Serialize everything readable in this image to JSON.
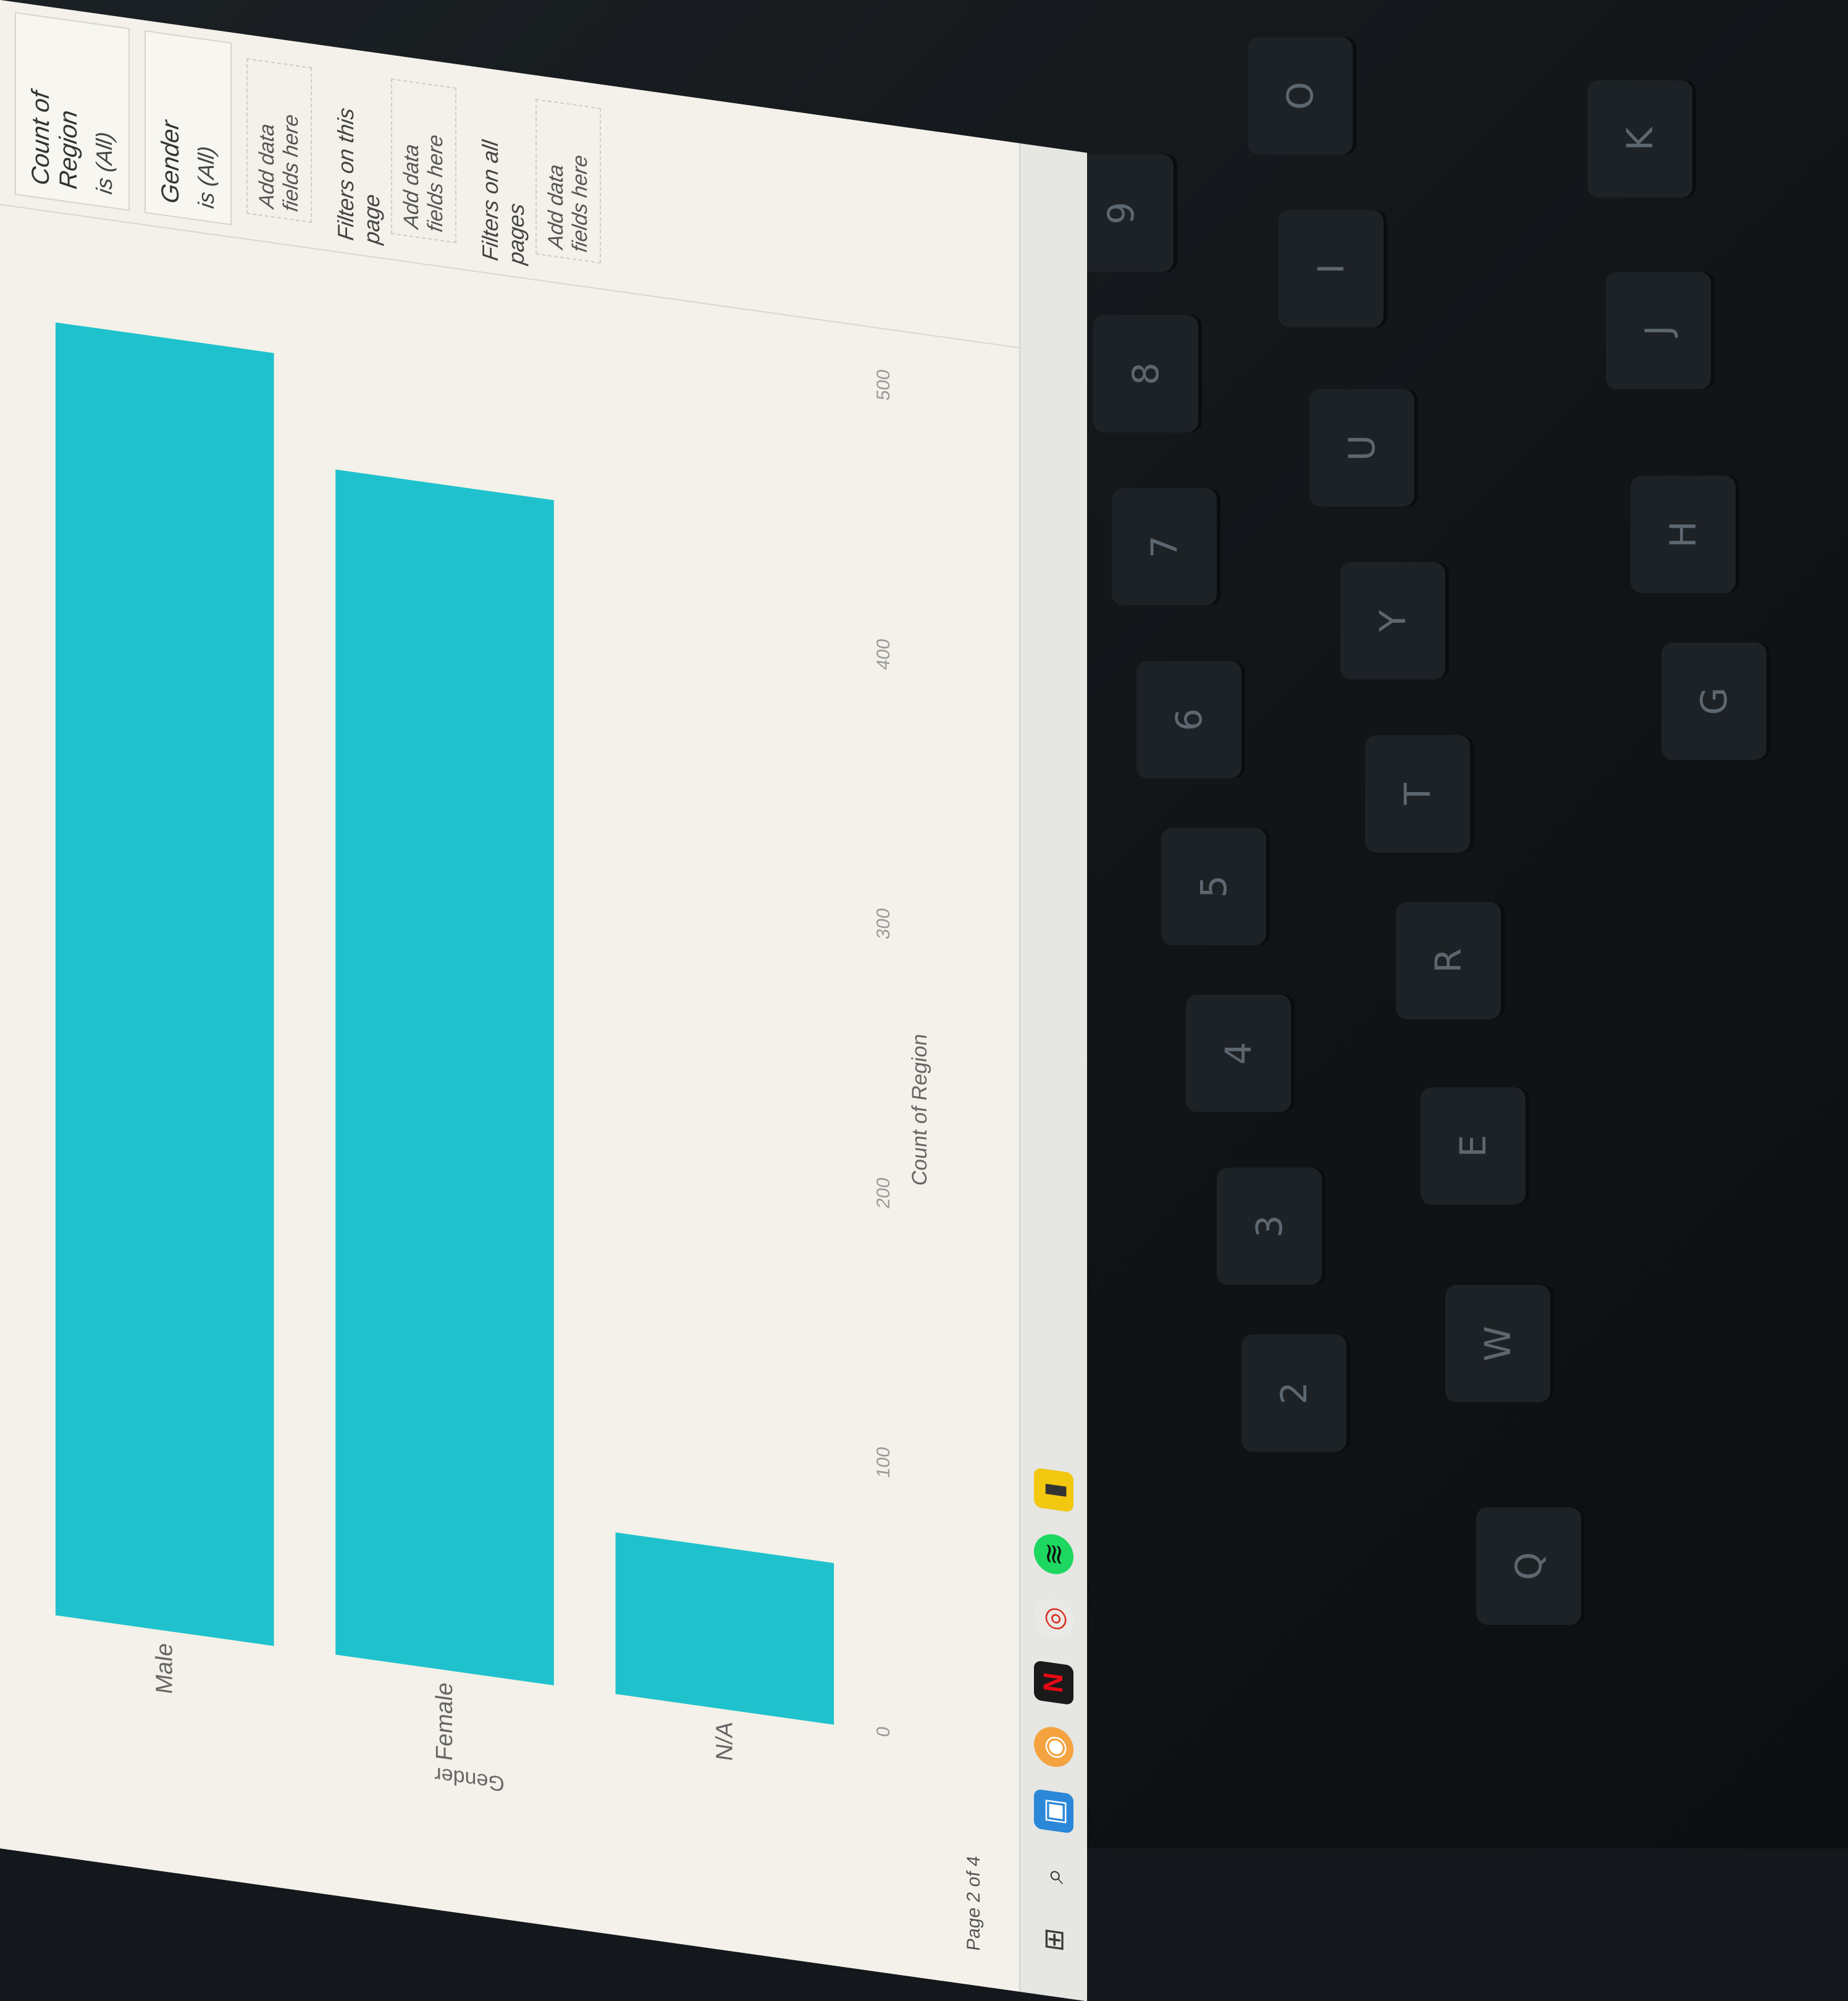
{
  "report": {
    "page_indicator": "Page 2 of 4"
  },
  "chart_data": {
    "type": "bar",
    "orientation": "horizontal",
    "ylabel": "Gender",
    "xlabel": "Count of Region",
    "categories": [
      "Male",
      "Female",
      "N/A"
    ],
    "values": [
      480,
      440,
      60
    ],
    "xticks": [
      "0",
      "100",
      "200",
      "300",
      "400",
      "500"
    ],
    "xlim": [
      0,
      500
    ],
    "bar_color": "#1fc2cc"
  },
  "filters": {
    "cards": [
      {
        "title": "Count of Region",
        "value": "is (All)"
      },
      {
        "title": "Gender",
        "value": "is (All)"
      }
    ],
    "visual_add": "Add data fields here",
    "page_section": "Filters on this page",
    "page_add": "Add data fields here",
    "all_section": "Filters on all pages",
    "all_add": "Add data fields here"
  },
  "taskbar": {
    "icons": [
      "windows-icon",
      "search-icon",
      "store-icon",
      "photos-icon",
      "netflix-icon",
      "chrome-icon",
      "spotify-icon",
      "powerbi-icon"
    ]
  },
  "keyboard": {
    "keys": [
      "Q",
      "W",
      "E",
      "R",
      "T",
      "Y",
      "U",
      "I",
      "O",
      "2",
      "3",
      "4",
      "5",
      "6",
      "7",
      "8",
      "9",
      "G",
      "H",
      "J",
      "K"
    ]
  }
}
